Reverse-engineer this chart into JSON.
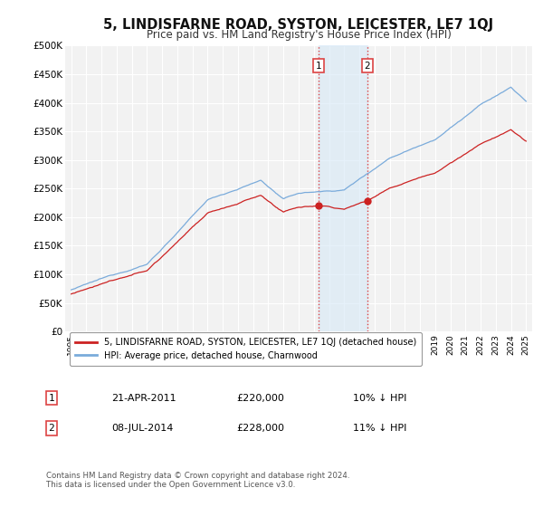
{
  "title": "5, LINDISFARNE ROAD, SYSTON, LEICESTER, LE7 1QJ",
  "subtitle": "Price paid vs. HM Land Registry's House Price Index (HPI)",
  "title_fontsize": 10.5,
  "subtitle_fontsize": 8.5,
  "ylabel_ticks": [
    "£0",
    "£50K",
    "£100K",
    "£150K",
    "£200K",
    "£250K",
    "£300K",
    "£350K",
    "£400K",
    "£450K",
    "£500K"
  ],
  "ytick_values": [
    0,
    50000,
    100000,
    150000,
    200000,
    250000,
    300000,
    350000,
    400000,
    450000,
    500000
  ],
  "ylim": [
    0,
    500000
  ],
  "xlim_start": 1994.6,
  "xlim_end": 2025.4,
  "background_color": "#ffffff",
  "plot_bg_color": "#f2f2f2",
  "grid_color": "#ffffff",
  "hpi_color": "#7aabdb",
  "price_color": "#cc2222",
  "marker1_x": 2011.3,
  "marker1_price": 220000,
  "marker2_x": 2014.53,
  "marker2_price": 228000,
  "shade_color": "#d6e8f7",
  "shade_alpha": 0.6,
  "vline_color": "#dd4444",
  "vline_style": ":",
  "legend_line1": "5, LINDISFARNE ROAD, SYSTON, LEICESTER, LE7 1QJ (detached house)",
  "legend_line2": "HPI: Average price, detached house, Charnwood",
  "footer": "Contains HM Land Registry data © Crown copyright and database right 2024.\nThis data is licensed under the Open Government Licence v3.0.",
  "table_row1": [
    "1",
    "21-APR-2011",
    "£220,000",
    "10% ↓ HPI"
  ],
  "table_row2": [
    "2",
    "08-JUL-2014",
    "£228,000",
    "11% ↓ HPI"
  ]
}
